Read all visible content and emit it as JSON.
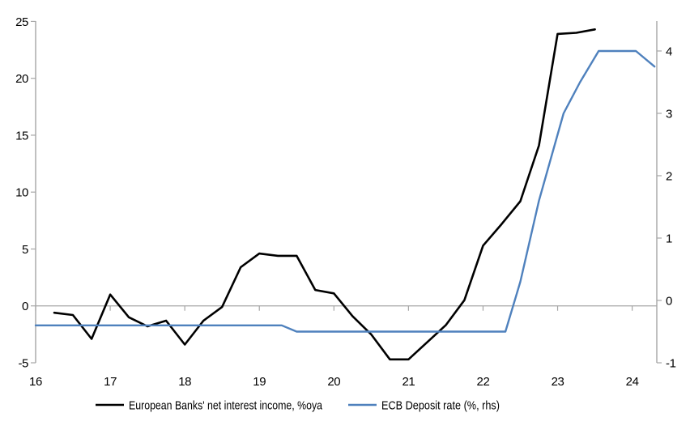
{
  "chart_data": {
    "type": "line",
    "title": "",
    "x_axis": {
      "min": 16,
      "max": 24.33,
      "ticks": [
        16,
        17,
        18,
        19,
        20,
        21,
        22,
        23,
        24
      ],
      "tick_labels": [
        "16",
        "17",
        "18",
        "19",
        "20",
        "21",
        "22",
        "23",
        "24"
      ]
    },
    "left_axis": {
      "min": -5,
      "max": 25.03,
      "ticks": [
        25,
        20,
        15,
        10,
        5,
        0,
        -5
      ],
      "tick_labels": [
        "25",
        "20",
        "15",
        "10",
        "5",
        "0",
        "-5"
      ]
    },
    "right_axis": {
      "min": -1,
      "max": 4.48,
      "ticks": [
        4,
        3,
        2,
        1,
        0,
        -1
      ],
      "tick_labels": [
        "4",
        "3",
        "2",
        "1",
        "0",
        "-1"
      ]
    },
    "grid": "zero-line-only",
    "legend_position": "bottom",
    "series": [
      {
        "id": "nii",
        "name": "European Banks' net interest income, %oya",
        "axis": "left",
        "color": "#000000",
        "points": [
          [
            16.25,
            -0.6
          ],
          [
            16.5,
            -0.8
          ],
          [
            16.75,
            -2.9
          ],
          [
            17.0,
            1.0
          ],
          [
            17.25,
            -1.0
          ],
          [
            17.5,
            -1.8
          ],
          [
            17.75,
            -1.3
          ],
          [
            18.0,
            -3.4
          ],
          [
            18.25,
            -1.3
          ],
          [
            18.5,
            -0.1
          ],
          [
            18.75,
            3.4
          ],
          [
            19.0,
            4.6
          ],
          [
            19.25,
            4.4
          ],
          [
            19.5,
            4.4
          ],
          [
            19.75,
            1.4
          ],
          [
            20.0,
            1.1
          ],
          [
            20.25,
            -0.9
          ],
          [
            20.5,
            -2.5
          ],
          [
            20.75,
            -4.7
          ],
          [
            21.0,
            -4.7
          ],
          [
            21.25,
            -3.2
          ],
          [
            21.5,
            -1.7
          ],
          [
            21.75,
            0.5
          ],
          [
            22.0,
            5.3
          ],
          [
            22.25,
            7.2
          ],
          [
            22.5,
            9.2
          ],
          [
            22.75,
            14.1
          ],
          [
            23.0,
            23.9
          ],
          [
            23.25,
            24.0
          ],
          [
            23.5,
            24.3
          ]
        ]
      },
      {
        "id": "ecb",
        "name": "ECB Deposit rate (%, rhs)",
        "axis": "right",
        "color": "#4f81bd",
        "points": [
          [
            16.0,
            -0.4
          ],
          [
            19.3,
            -0.4
          ],
          [
            19.5,
            -0.5
          ],
          [
            22.3,
            -0.5
          ],
          [
            22.5,
            0.3
          ],
          [
            22.75,
            1.6
          ],
          [
            23.08,
            3.0
          ],
          [
            23.3,
            3.5
          ],
          [
            23.55,
            4.0
          ],
          [
            24.05,
            4.0
          ],
          [
            24.3,
            3.75
          ]
        ]
      }
    ]
  },
  "colors": {
    "background": "#ffffff",
    "axis_line": "#a6a6a6",
    "zero_line": "#a6a6a6",
    "text": "#000000",
    "series_black": "#000000",
    "series_blue": "#4f81bd"
  }
}
